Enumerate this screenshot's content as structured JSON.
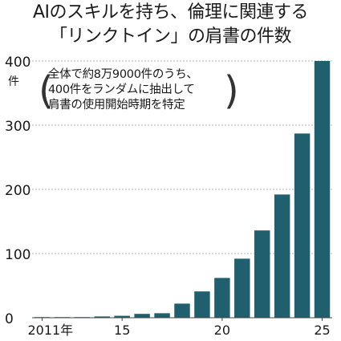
{
  "chart_data": {
    "type": "bar",
    "title_line1": "AIのスキルを持ち、倫理に関連する",
    "title_line2": "「リンクトイン」の肩書の件数",
    "ylabel": "件",
    "ylim": [
      0,
      400
    ],
    "yticks": [
      "0",
      "100",
      "200",
      "300",
      "400"
    ],
    "x": [
      2011,
      2012,
      2013,
      2014,
      2015,
      2016,
      2017,
      2018,
      2019,
      2020,
      2021,
      2022,
      2023,
      2024,
      2025
    ],
    "values": [
      1,
      1,
      1,
      2,
      3,
      6,
      7,
      22,
      41,
      62,
      92,
      136,
      192,
      287,
      400
    ],
    "xtick_labels": [
      {
        "index": 0,
        "label": "2011年"
      },
      {
        "index": 4,
        "label": "15"
      },
      {
        "index": 9,
        "label": "20"
      },
      {
        "index": 14,
        "label": "25"
      }
    ],
    "note_lines": [
      "全体で約8万9000件のうち、",
      "400件をランダムに抽出して",
      "肩書の使用開始時期を特定"
    ],
    "grid": true,
    "bar_color": "#1f5f6e"
  }
}
